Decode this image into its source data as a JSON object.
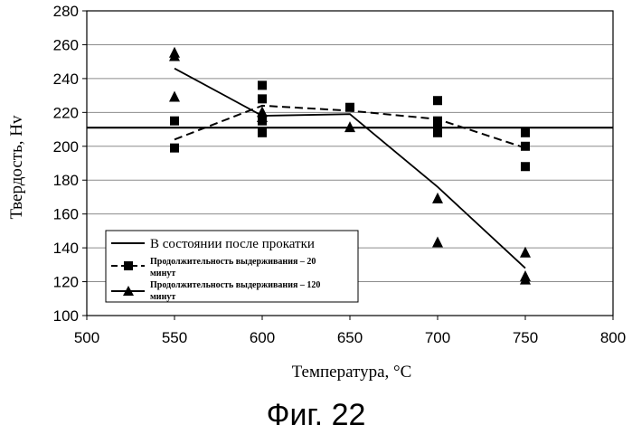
{
  "chart_data": {
    "type": "line",
    "xlabel": "Температура, °C",
    "ylabel": "Твердость, Hv",
    "xlim": [
      500,
      800
    ],
    "ylim": [
      100,
      280
    ],
    "x_ticks": [
      "500",
      "550",
      "600",
      "650",
      "700",
      "750",
      "800"
    ],
    "y_ticks": [
      "100",
      "120",
      "140",
      "160",
      "180",
      "200",
      "220",
      "240",
      "260",
      "280"
    ],
    "grid": "horizontal",
    "legend_position": "bottom-left",
    "as_rolled_value": 211,
    "series": [
      {
        "name": "В состоянии после прокатки",
        "style": "solid-line",
        "points": [
          [
            500,
            211
          ],
          [
            800,
            211
          ]
        ]
      },
      {
        "name_lines": [
          "Продолжительность выдерживания – 20",
          "минут"
        ],
        "style": "dashed-line-square",
        "line": [
          [
            550,
            204
          ],
          [
            600,
            224
          ],
          [
            650,
            221
          ],
          [
            700,
            216
          ],
          [
            750,
            199
          ]
        ],
        "points": [
          [
            550,
            199
          ],
          [
            550,
            215
          ],
          [
            600,
            208
          ],
          [
            600,
            215
          ],
          [
            600,
            228
          ],
          [
            600,
            236
          ],
          [
            650,
            223
          ],
          [
            700,
            208
          ],
          [
            700,
            210
          ],
          [
            700,
            215
          ],
          [
            700,
            227
          ],
          [
            750,
            188
          ],
          [
            750,
            200
          ],
          [
            750,
            208
          ]
        ]
      },
      {
        "name_lines": [
          "Продолжительность выдерживания – 120",
          "минут"
        ],
        "style": "solid-line-triangle",
        "line": [
          [
            550,
            246
          ],
          [
            600,
            218
          ],
          [
            650,
            219
          ],
          [
            700,
            176
          ],
          [
            750,
            128
          ]
        ],
        "points": [
          [
            550,
            229
          ],
          [
            550,
            253
          ],
          [
            550,
            255
          ],
          [
            600,
            217
          ],
          [
            600,
            220
          ],
          [
            650,
            211
          ],
          [
            700,
            143
          ],
          [
            700,
            169
          ],
          [
            750,
            121
          ],
          [
            750,
            123
          ],
          [
            750,
            137
          ]
        ]
      }
    ],
    "colors": {
      "ink": "#000000",
      "background": "#ffffff"
    }
  },
  "caption": "Фиг. 22"
}
